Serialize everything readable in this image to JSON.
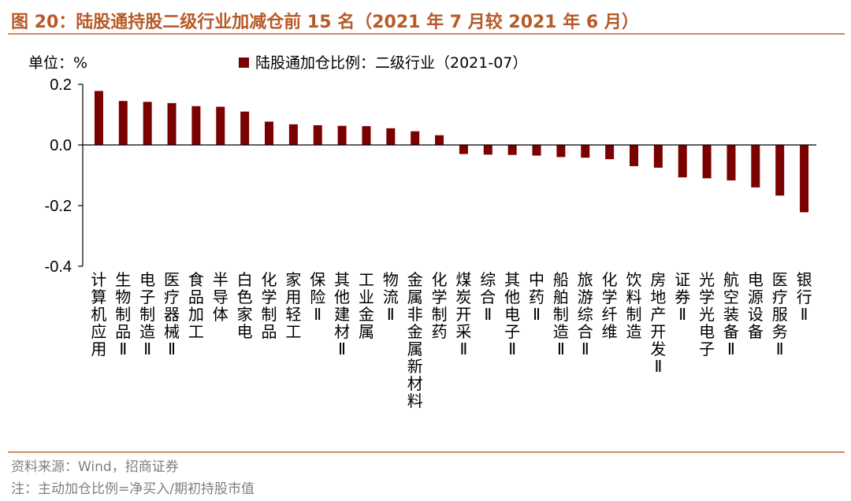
{
  "title": "图 20：陆股通持股二级行业加减仓前 15 名（2021 年 7 月较 2021 年 6 月）",
  "unit_label": "单位：%",
  "source": "资料来源：Wind，招商证券",
  "note": "注：主动加仓比例=净买入/期初持股市值",
  "chart_data": {
    "type": "bar",
    "legend": "陆股通加仓比例：二级行业（2021-07）",
    "ylim": [
      -0.4,
      0.2
    ],
    "yticks": [
      "0.2",
      "0.0",
      "-0.2",
      "-0.4"
    ],
    "grid": false,
    "bar_color": "#7b0000",
    "categories": [
      "计算机应用",
      "生物制品Ⅱ",
      "电子制造Ⅱ",
      "医疗器械Ⅱ",
      "食品加工",
      "半导体",
      "白色家电",
      "化学制品",
      "家用轻工",
      "保险Ⅱ",
      "其他建材Ⅱ",
      "工业金属",
      "物流Ⅱ",
      "金属非金属新材料",
      "化学制药",
      "煤炭开采Ⅱ",
      "综合Ⅱ",
      "其他电子Ⅱ",
      "中药Ⅱ",
      "船舶制造Ⅱ",
      "旅游综合Ⅱ",
      "化学纤维",
      "饮料制造",
      "房地产开发Ⅱ",
      "证券Ⅱ",
      "光学光电子",
      "航空装备Ⅱ",
      "电源设备",
      "医疗服务Ⅱ",
      "银行Ⅱ"
    ],
    "values": [
      0.178,
      0.145,
      0.142,
      0.138,
      0.128,
      0.126,
      0.11,
      0.077,
      0.068,
      0.065,
      0.063,
      0.062,
      0.055,
      0.045,
      0.032,
      -0.03,
      -0.032,
      -0.033,
      -0.035,
      -0.04,
      -0.042,
      -0.047,
      -0.07,
      -0.075,
      -0.107,
      -0.11,
      -0.117,
      -0.14,
      -0.167,
      -0.222
    ]
  }
}
